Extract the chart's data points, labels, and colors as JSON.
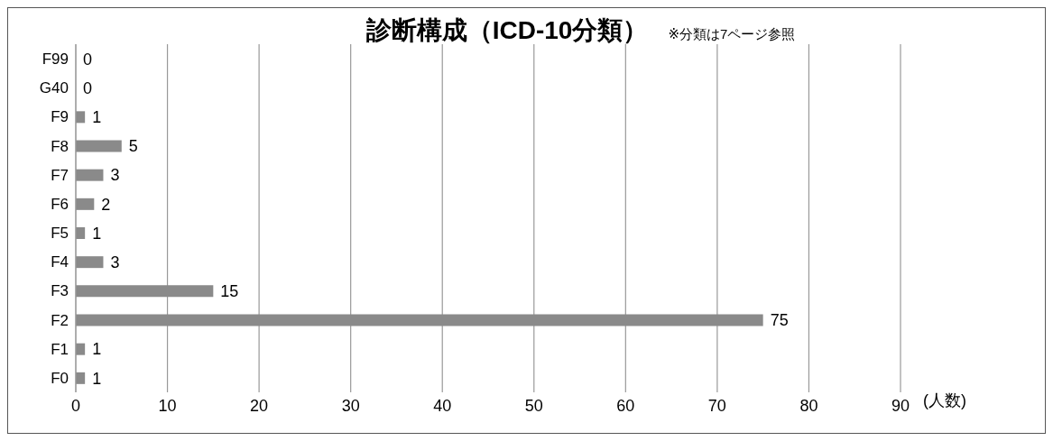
{
  "chart_data": {
    "type": "bar",
    "orientation": "horizontal",
    "title": "診断構成（ICD-10分類）",
    "subtitle": "※分類は7ページ参照",
    "xlabel": "(人数)",
    "categories": [
      "F99",
      "G40",
      "F9",
      "F8",
      "F7",
      "F6",
      "F5",
      "F4",
      "F3",
      "F2",
      "F1",
      "F0"
    ],
    "values": [
      0,
      0,
      1,
      5,
      3,
      2,
      1,
      3,
      15,
      75,
      1,
      1
    ],
    "color": "#8a8a8a",
    "xlim": [
      0,
      90
    ],
    "xticks": [
      0,
      10,
      20,
      30,
      40,
      50,
      60,
      70,
      80,
      90
    ],
    "grid": "x",
    "data_labels": true
  }
}
